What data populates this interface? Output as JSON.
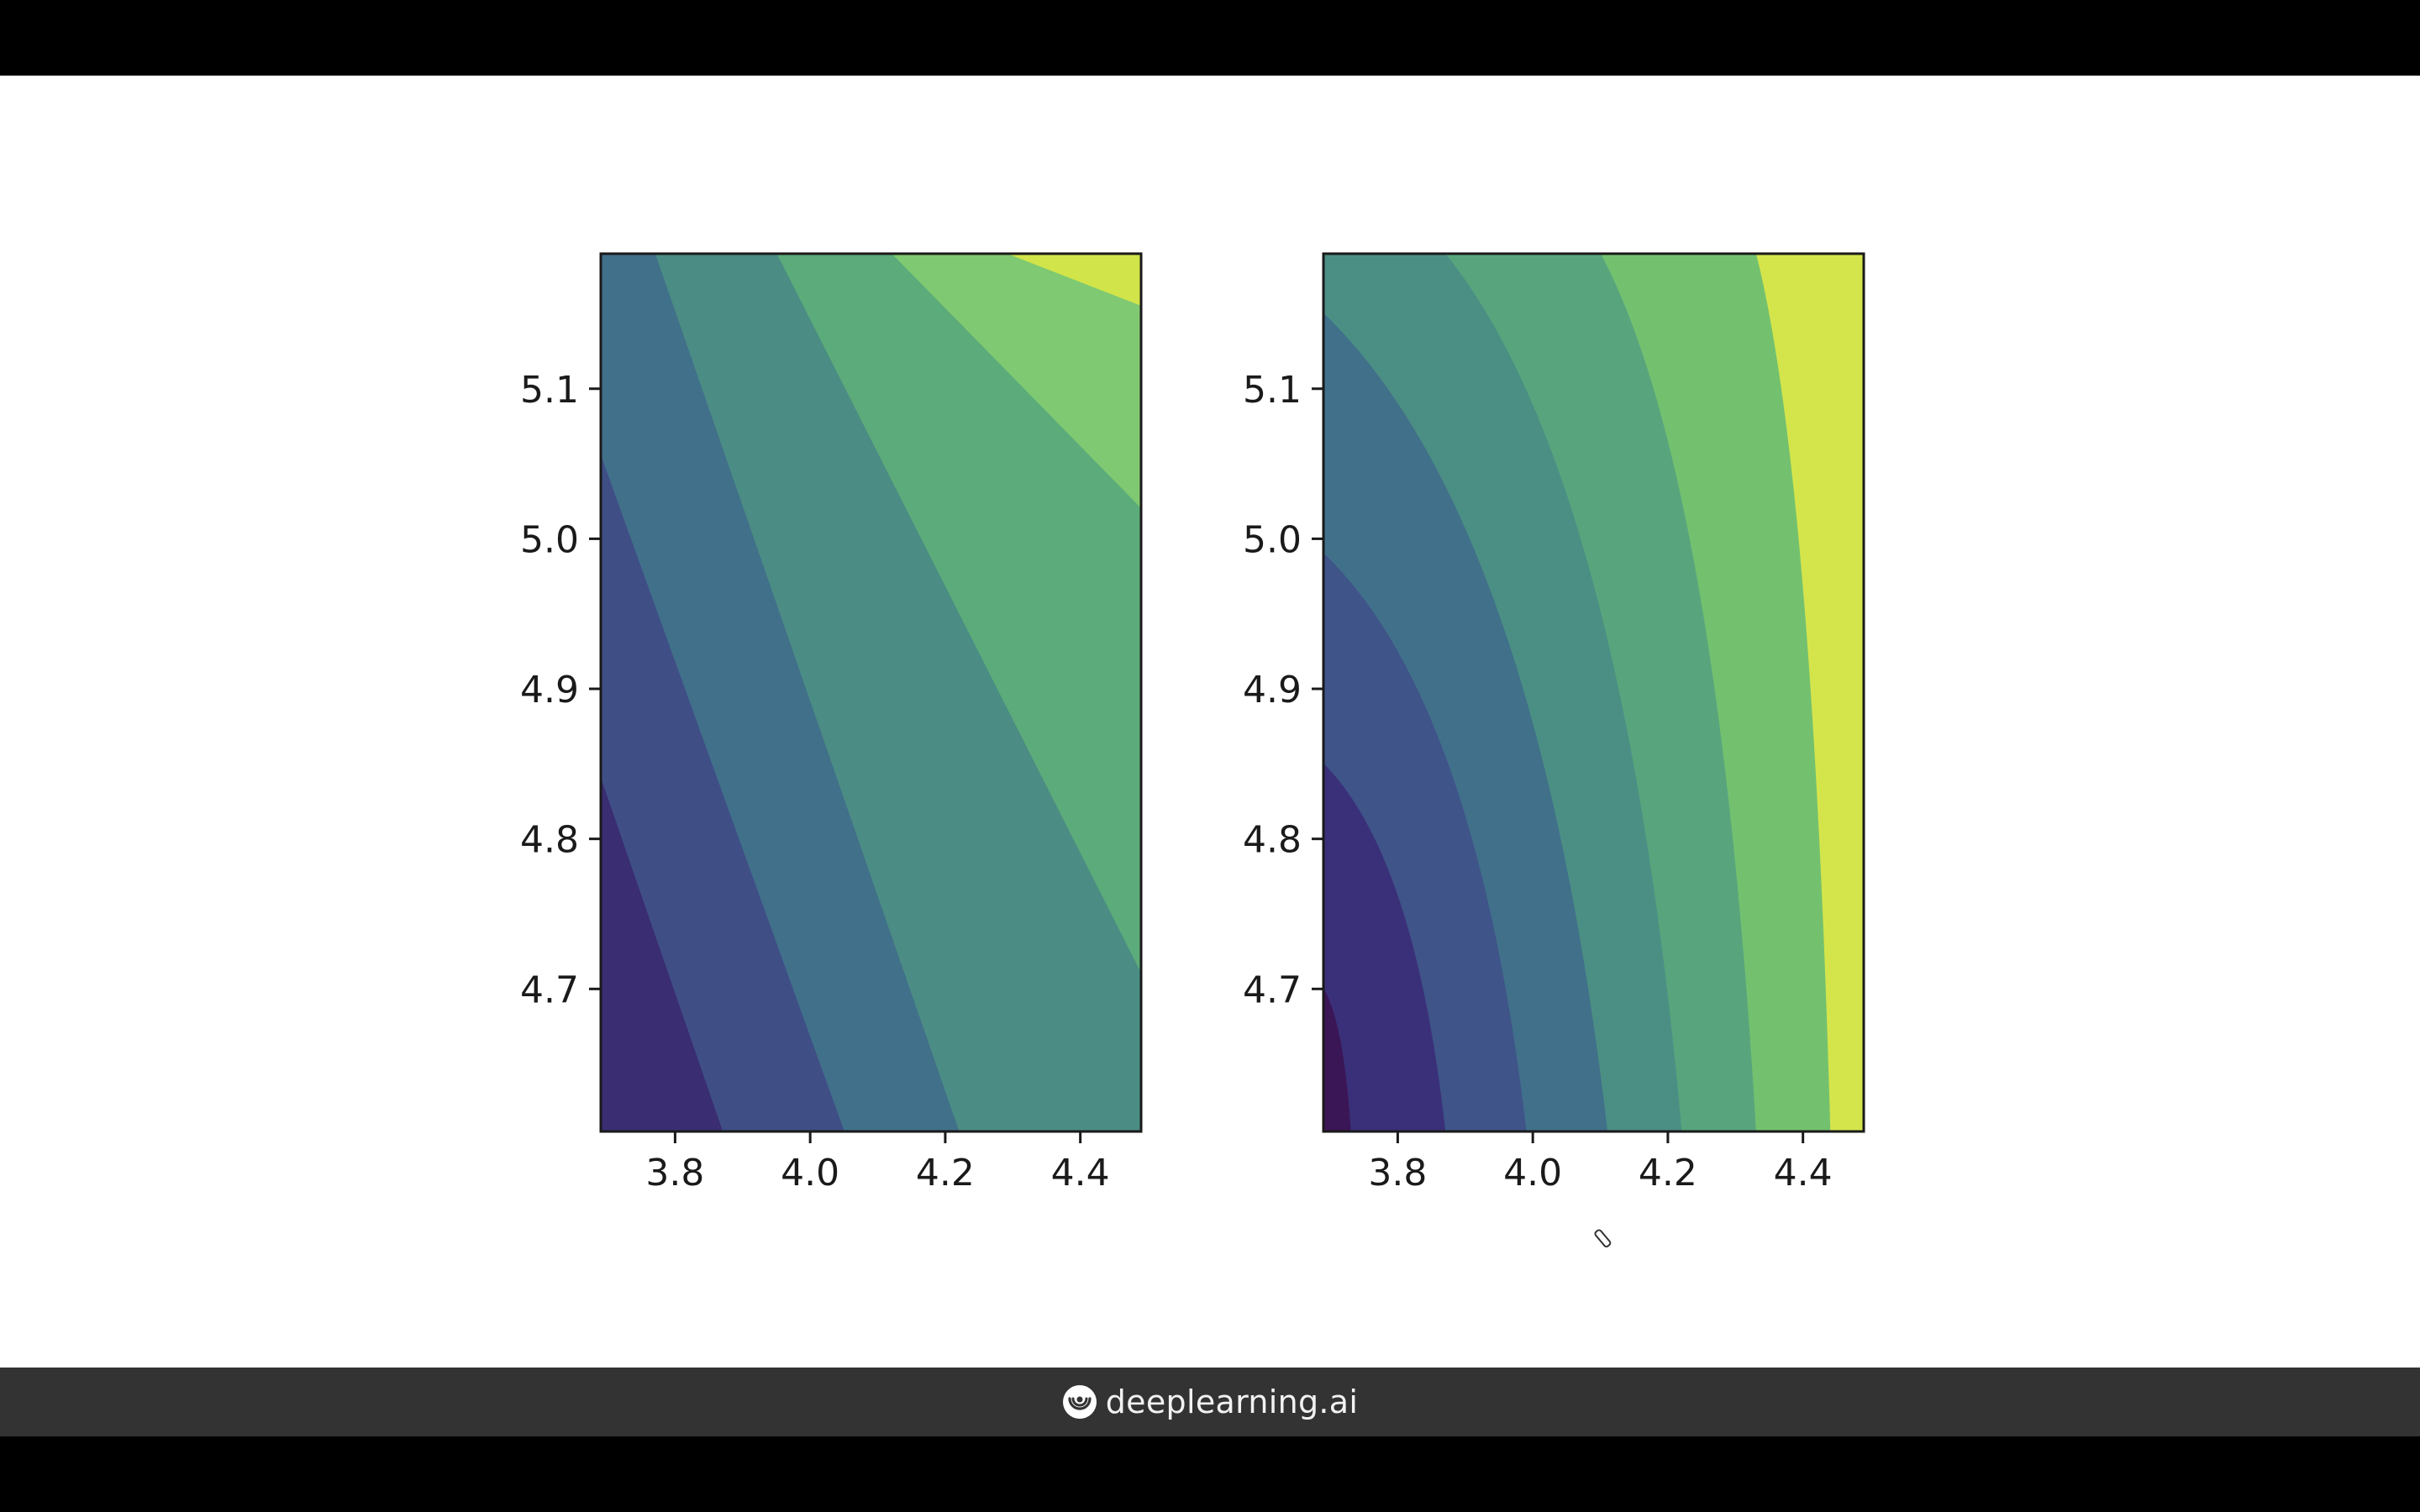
{
  "chart_data": [
    {
      "type": "contour",
      "xlim": [
        3.69,
        4.49
      ],
      "ylim": [
        4.605,
        5.19
      ],
      "x_ticks": [
        "3.8",
        "4.0",
        "4.2",
        "4.4"
      ],
      "y_ticks": [
        "4.7",
        "4.8",
        "4.9",
        "5.0",
        "5.1"
      ],
      "colormap": "viridis",
      "contour_lines": [
        [
          [
            3.69,
            4.84
          ],
          [
            3.87,
            4.605
          ]
        ],
        [
          [
            3.69,
            5.055
          ],
          [
            4.05,
            4.605
          ]
        ],
        [
          [
            3.77,
            5.19
          ],
          [
            4.22,
            4.605
          ]
        ],
        [
          [
            3.95,
            5.19
          ],
          [
            4.49,
            4.71
          ]
        ],
        [
          [
            4.12,
            5.19
          ],
          [
            4.49,
            5.02
          ]
        ],
        [
          [
            4.29,
            5.19
          ],
          [
            4.49,
            5.155
          ]
        ]
      ],
      "band_colors": [
        "#3b2d72",
        "#3f4f86",
        "#41708a",
        "#4b8c84",
        "#5cab7a",
        "#7ec972",
        "#a2de56",
        "#d1e44a"
      ]
    },
    {
      "type": "contour",
      "xlim": [
        3.69,
        4.49
      ],
      "ylim": [
        4.605,
        5.19
      ],
      "x_ticks": [
        "3.8",
        "4.0",
        "4.2",
        "4.4"
      ],
      "y_ticks": [
        "4.7",
        "4.8",
        "4.9",
        "5.0",
        "5.1"
      ],
      "colormap": "viridis",
      "contour_lines": [
        [
          [
            3.69,
            4.7
          ],
          [
            3.73,
            4.605
          ]
        ],
        [
          [
            3.69,
            4.85
          ],
          [
            3.87,
            4.605
          ]
        ],
        [
          [
            3.69,
            4.99
          ],
          [
            3.99,
            4.605
          ]
        ],
        [
          [
            3.69,
            5.15
          ],
          [
            4.11,
            4.605
          ]
        ],
        [
          [
            3.87,
            5.19
          ],
          [
            4.22,
            4.605
          ]
        ],
        [
          [
            4.1,
            5.19
          ],
          [
            4.33,
            4.605
          ]
        ],
        [
          [
            4.33,
            5.19
          ],
          [
            4.44,
            4.605
          ]
        ]
      ],
      "band_colors": [
        "#3b1656",
        "#3a3079",
        "#3f5489",
        "#41708a",
        "#4b8f84",
        "#58a57d",
        "#73c16f",
        "#a1d95a",
        "#d4e54c"
      ]
    }
  ],
  "footer": {
    "brand": "deeplearning.ai",
    "logo_icon": "deeplearning-logo-icon"
  }
}
